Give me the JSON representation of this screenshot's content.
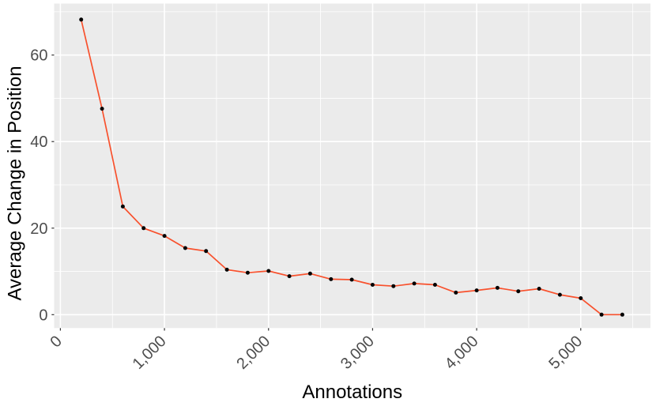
{
  "chart_data": {
    "type": "line",
    "title": "",
    "xlabel": "Annotations",
    "ylabel": "Average Change in Position",
    "x": [
      200,
      400,
      600,
      800,
      1000,
      1200,
      1400,
      1600,
      1800,
      2000,
      2200,
      2400,
      2600,
      2800,
      3000,
      3200,
      3400,
      3600,
      3800,
      4000,
      4200,
      4400,
      4600,
      4800,
      5000,
      5200,
      5400
    ],
    "y": [
      68.2,
      47.6,
      25.0,
      20.0,
      18.2,
      15.4,
      14.7,
      10.4,
      9.7,
      10.1,
      8.9,
      9.5,
      8.2,
      8.1,
      6.9,
      6.6,
      7.2,
      6.9,
      5.1,
      5.6,
      6.2,
      5.4,
      6.0,
      4.6,
      3.8,
      0.0,
      0.0
    ],
    "xlim": [
      -60,
      5670
    ],
    "ylim": [
      -3.1,
      71.9
    ],
    "x_ticks": {
      "values": [
        0,
        1000,
        2000,
        3000,
        4000,
        5000
      ],
      "labels": [
        "0",
        "1,000",
        "2,000",
        "3,000",
        "4,000",
        "5,000"
      ],
      "angle_deg": -45
    },
    "x_minor_ticks": [
      500,
      1500,
      2500,
      3500,
      4500,
      5500
    ],
    "y_ticks": {
      "values": [
        0,
        20,
        40,
        60
      ],
      "labels": [
        "0",
        "20",
        "40",
        "60"
      ]
    },
    "y_minor_ticks": [
      10,
      30,
      50,
      70
    ],
    "grid": "major+minor",
    "legend": "none",
    "style": {
      "panel_background": "#EBEBEB",
      "grid_color": "#FFFFFF",
      "line_color": "#F8512D",
      "point_color": "#000000",
      "tick_mark_color": "#333333",
      "tick_label_color": "#4D4D4D",
      "axis_title_color": "#000000"
    }
  }
}
